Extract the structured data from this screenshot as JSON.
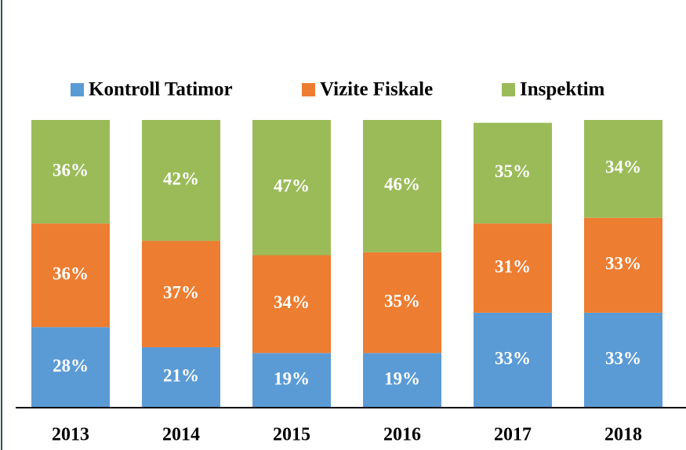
{
  "chart_data": {
    "type": "stacked_bar",
    "categories": [
      "2013",
      "2014",
      "2015",
      "2016",
      "2017",
      "2018"
    ],
    "series": [
      {
        "name": "Kontroll Tatimor",
        "color": "#5b9bd5",
        "values": [
          28,
          21,
          19,
          19,
          33,
          33
        ],
        "value_labels": [
          "28%",
          "21%",
          "19%",
          "19%",
          "33%",
          "33%"
        ]
      },
      {
        "name": "Vizite Fiskale",
        "color": "#ed7d31",
        "values": [
          36,
          37,
          34,
          35,
          31,
          33
        ],
        "value_labels": [
          "36%",
          "37%",
          "34%",
          "35%",
          "31%",
          "33%"
        ]
      },
      {
        "name": "Inspektim",
        "color": "#9bbb59",
        "values": [
          36,
          42,
          47,
          46,
          35,
          34
        ],
        "value_labels": [
          "36%",
          "42%",
          "47%",
          "46%",
          "35%",
          "34%"
        ]
      }
    ],
    "ylim": [
      0,
      100
    ]
  }
}
